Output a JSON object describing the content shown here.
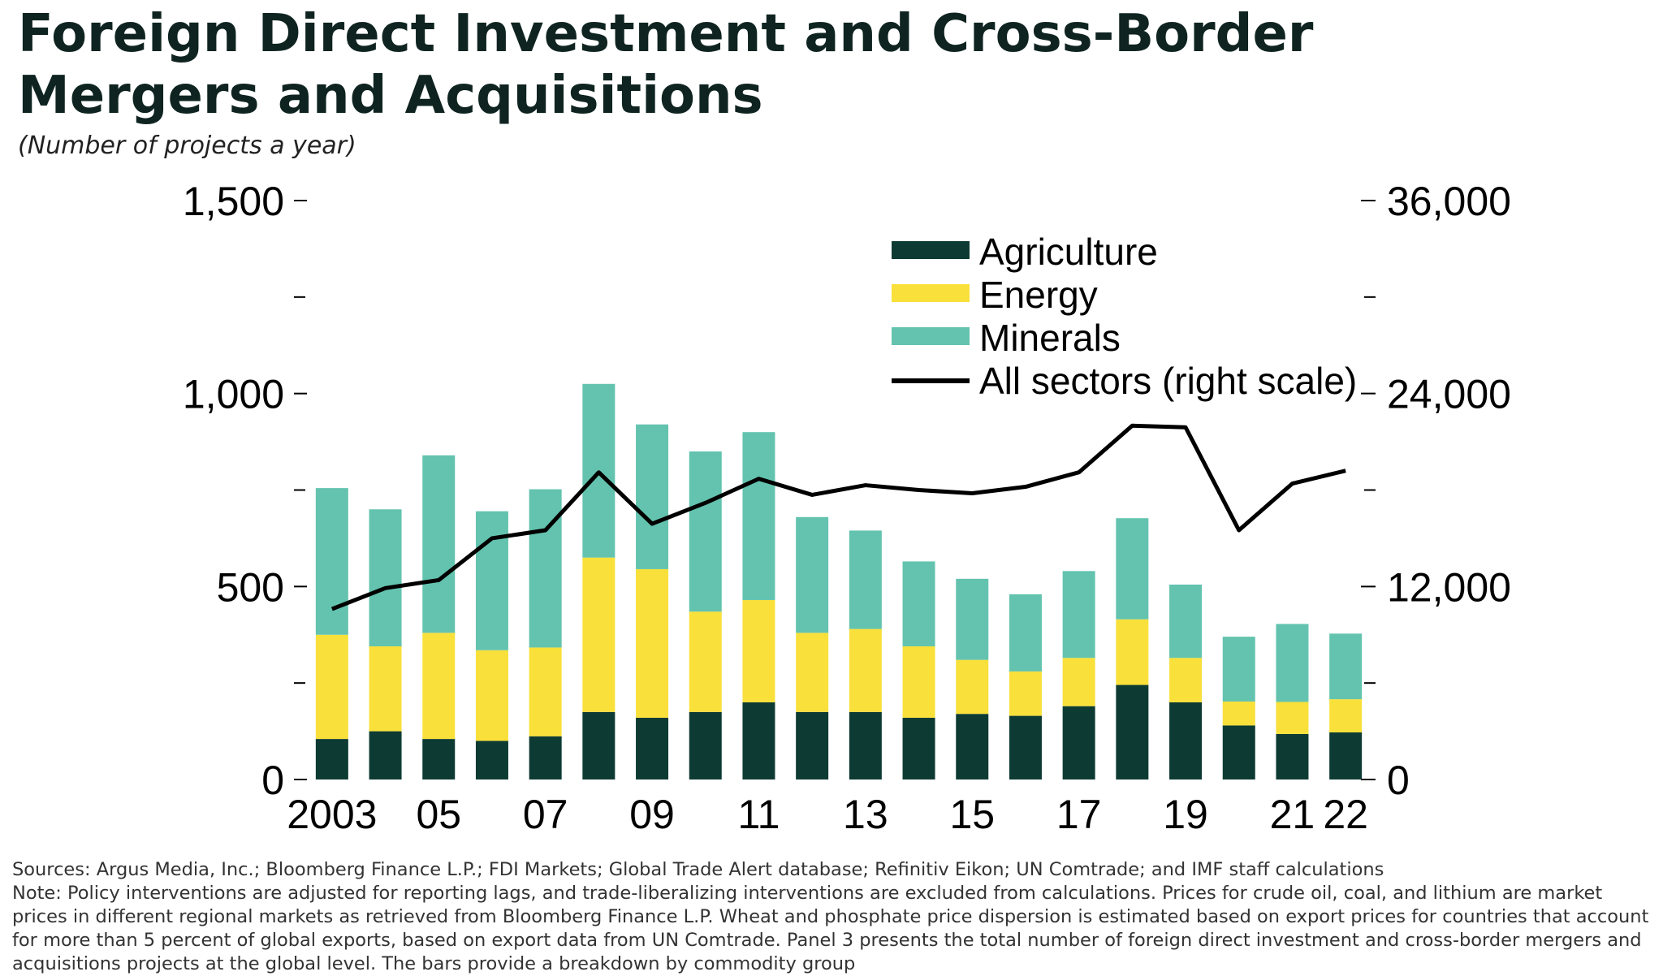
{
  "title": "Foreign Direct Investment and Cross-Border Mergers and Acquisitions",
  "subtitle": "(Number of projects a year)",
  "footer": {
    "sources": "Sources: Argus Media, Inc.; Bloomberg Finance L.P.; FDI Markets; Global Trade Alert database; Refinitiv Eikon; UN Comtrade; and IMF staff calculations",
    "note": "Note: Policy interventions are adjusted for reporting lags, and trade-liberalizing interventions are excluded from calculations. Prices for crude oil, coal, and lithium are market prices in different regional markets as retrieved from Bloomberg Finance L.P. Wheat and phosphate price dispersion is estimated based on export prices for countries that account for more than 5 percent of global exports, based on export data from UN Comtrade. Panel 3 presents the total number of foreign direct investment and cross-border mergers and acquisitions projects at the global level. The bars provide a breakdown by commodity group"
  },
  "chart_data": {
    "type": "bar",
    "stacked": true,
    "categories": [
      "2003",
      "2004",
      "2005",
      "2006",
      "2007",
      "2008",
      "2009",
      "2010",
      "2011",
      "2012",
      "2013",
      "2014",
      "2015",
      "2016",
      "2017",
      "2018",
      "2019",
      "2020",
      "2021",
      "2022"
    ],
    "x_tick_labels": [
      "2003",
      "",
      "05",
      "",
      "07",
      "",
      "09",
      "",
      "11",
      "",
      "13",
      "",
      "15",
      "",
      "17",
      "",
      "19",
      "",
      "21",
      "22"
    ],
    "series": [
      {
        "name": "Agriculture",
        "color": "#0d3b33",
        "values": [
          105,
          125,
          105,
          100,
          112,
          175,
          160,
          175,
          200,
          175,
          175,
          160,
          170,
          165,
          190,
          245,
          200,
          140,
          118,
          122
        ]
      },
      {
        "name": "Energy",
        "color": "#f9e03b",
        "values": [
          270,
          220,
          275,
          235,
          230,
          400,
          385,
          260,
          265,
          205,
          215,
          185,
          140,
          115,
          125,
          170,
          115,
          62,
          83,
          86
        ]
      },
      {
        "name": "Minerals",
        "color": "#63c3af",
        "values": [
          380,
          355,
          460,
          360,
          410,
          450,
          375,
          415,
          435,
          300,
          255,
          220,
          210,
          200,
          225,
          262,
          190,
          168,
          202,
          170
        ]
      }
    ],
    "line_series": {
      "name": "All sectors (right scale)",
      "color": "#000000",
      "axis": "right",
      "values": [
        10600,
        11900,
        12400,
        15000,
        15500,
        19100,
        15900,
        17200,
        18700,
        17700,
        18300,
        18000,
        17800,
        18200,
        19100,
        22000,
        21900,
        15500,
        18400,
        19200
      ]
    },
    "y_left": {
      "ylim": [
        0,
        1500
      ],
      "tick_labels": [
        "0",
        "500",
        "1,000",
        "1,500"
      ],
      "tick_values": [
        0,
        500,
        1000,
        1500
      ],
      "minor_tick_values": [
        250,
        750,
        1250
      ]
    },
    "y_right": {
      "ylim": [
        0,
        36000
      ],
      "tick_labels": [
        "0",
        "12,000",
        "24,000",
        "36,000"
      ],
      "tick_values": [
        0,
        12000,
        24000,
        36000
      ],
      "minor_tick_values": [
        6000,
        18000,
        30000
      ]
    },
    "legend": {
      "placement": "top-right",
      "entries": [
        "Agriculture",
        "Energy",
        "Minerals",
        "All sectors (right scale)"
      ]
    },
    "grid": false
  }
}
